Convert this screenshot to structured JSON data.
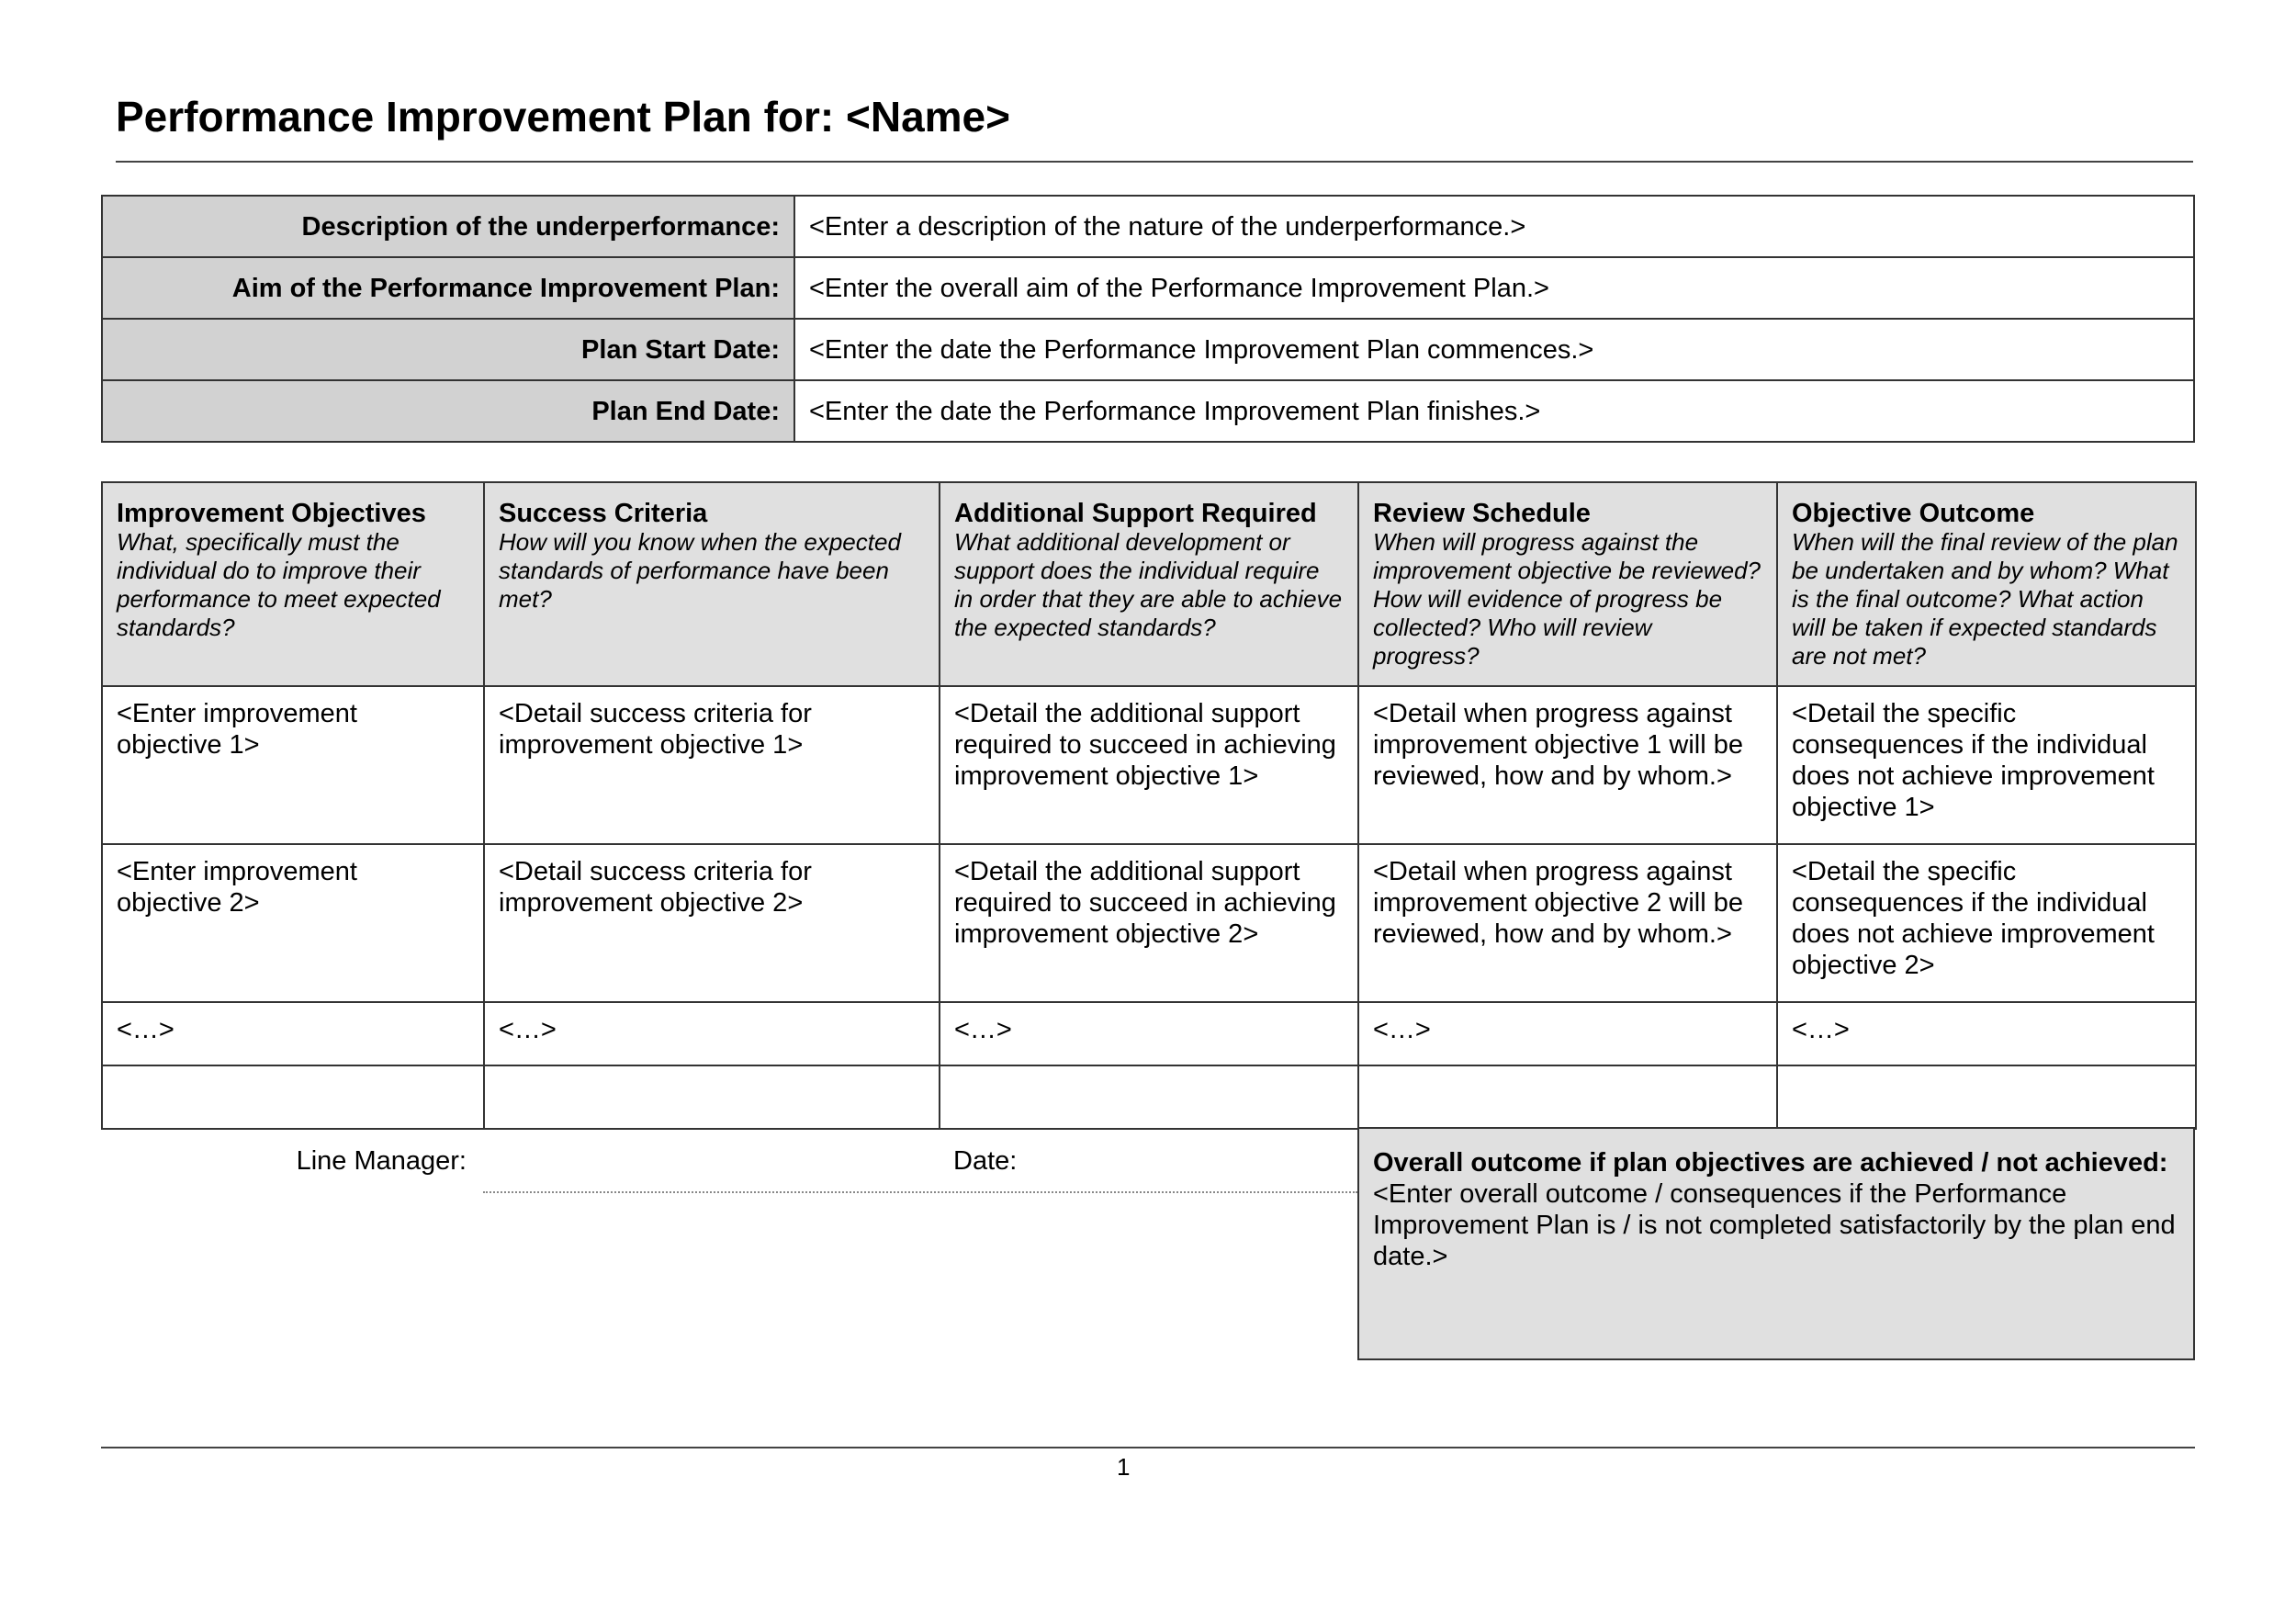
{
  "title": "Performance Improvement Plan for: <Name>",
  "info_rows": [
    {
      "label": "Description of the underperformance:",
      "value": "<Enter a description of the nature of the underperformance.>"
    },
    {
      "label": "Aim of the Performance Improvement Plan:",
      "value": "<Enter the overall aim of the Performance Improvement Plan.>"
    },
    {
      "label": "Plan Start Date:",
      "value": "<Enter the date the Performance Improvement Plan commences.>"
    },
    {
      "label": "Plan End Date:",
      "value": "<Enter the date the Performance Improvement Plan finishes.>"
    }
  ],
  "columns": [
    {
      "title": "Improvement Objectives",
      "subtitle": "What, specifically must the individual do to improve their performance to meet expected standards?"
    },
    {
      "title": "Success Criteria",
      "subtitle": "How will you know when the expected standards of performance have been met?"
    },
    {
      "title": "Additional Support Required",
      "subtitle": "What additional development or support does the individual require in order that they are able to achieve the expected standards?"
    },
    {
      "title": "Review Schedule",
      "subtitle": "When will progress against the improvement objective be reviewed? How will evidence of progress be collected? Who will review progress?"
    },
    {
      "title": "Objective Outcome",
      "subtitle": "When will the final review of the plan be undertaken and by whom? What is the final outcome? What action will be taken if expected standards are not met?"
    }
  ],
  "rows": [
    [
      "<Enter improvement objective 1>",
      "<Detail success criteria for improvement objective 1>",
      "<Detail the additional support required to succeed in achieving improvement objective 1>",
      "<Detail when progress against improvement objective 1 will be reviewed, how and by whom.>",
      "<Detail the specific consequences if the individual does not achieve improvement objective 1>"
    ],
    [
      "<Enter improvement objective 2>",
      "<Detail success criteria for improvement objective 2>",
      "<Detail the additional support required to succeed in achieving improvement objective 2>",
      "<Detail when progress against improvement objective 2 will be reviewed, how and by whom.>",
      "<Detail the specific consequences if the individual does not achieve improvement objective 2>"
    ],
    [
      "<…>",
      "<…>",
      "<…>",
      "<…>",
      "<…>"
    ],
    [
      "",
      "",
      "",
      "",
      ""
    ]
  ],
  "signoff": {
    "line_manager_label": "Line Manager:",
    "date_label": "Date:"
  },
  "overall": {
    "title": "Overall outcome if plan objectives are achieved / not achieved:",
    "text": "<Enter overall outcome / consequences if the Performance Improvement Plan is / is not completed satisfactorily by the plan end date.>"
  },
  "page_number": "1"
}
